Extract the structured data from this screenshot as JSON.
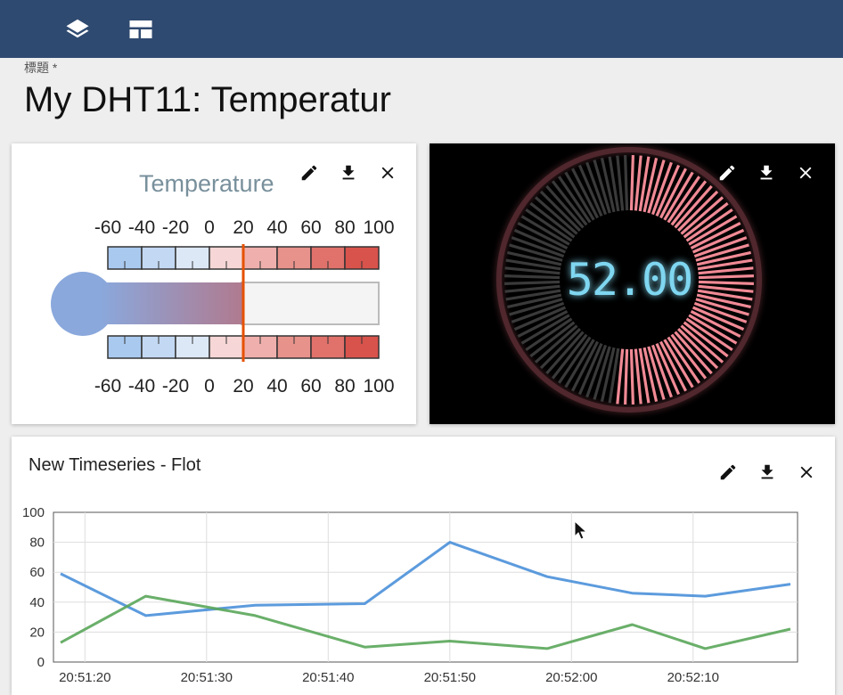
{
  "header": {
    "icons": [
      "layers-icon",
      "dashboard-layout-icon"
    ],
    "colors": {
      "bar": "#2f4a70"
    }
  },
  "form": {
    "title_label": "標題 *",
    "title_value": "My DHT11: Temperatur"
  },
  "widgets": {
    "thermometer": {
      "title": "Temperature",
      "scale_labels": [
        "-60",
        "-40",
        "-20",
        "0",
        "20",
        "40",
        "60",
        "80",
        "100"
      ],
      "min": -60,
      "max": 100,
      "value": 20
    },
    "digital_gauge": {
      "display_value": "52.00",
      "value": 52,
      "max": 100
    },
    "timeseries": {
      "title": "New Timeseries - Flot"
    }
  },
  "chart_data": {
    "type": "line",
    "x": [
      "20:51:18",
      "20:51:25",
      "20:51:34",
      "20:51:43",
      "20:51:50",
      "20:51:58",
      "20:52:05",
      "20:52:11",
      "20:52:18"
    ],
    "x_tick_labels": [
      "20:51:20",
      "20:51:30",
      "20:51:40",
      "20:51:50",
      "20:52:00",
      "20:52:10"
    ],
    "y_tick_labels": [
      "0",
      "20",
      "40",
      "60",
      "80",
      "100"
    ],
    "ylim": [
      0,
      100
    ],
    "grid": true,
    "series": [
      {
        "color": "#4a90d9",
        "values": [
          59,
          31,
          38,
          39,
          80,
          57,
          46,
          44,
          52
        ]
      },
      {
        "color": "#5aa65a",
        "values": [
          13,
          44,
          31,
          10,
          14,
          9,
          25,
          9,
          22
        ]
      }
    ]
  }
}
